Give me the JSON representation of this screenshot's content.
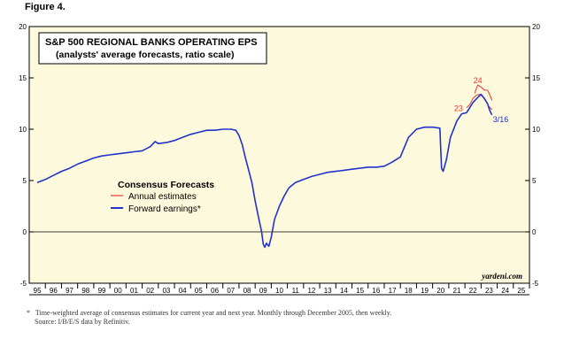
{
  "figure_label": "Figure 4.",
  "chart_data": {
    "type": "line",
    "title": "S&P 500 REGIONAL BANKS OPERATING EPS",
    "subtitle": "(analysts' average forecasts, ratio scale)",
    "xlabel": "",
    "ylabel": "",
    "ylim": [
      -5,
      20
    ],
    "yticks": [
      -5,
      0,
      5,
      10,
      15,
      20
    ],
    "xlim": [
      1994.5,
      2025.5
    ],
    "x_tick_labels": [
      "95",
      "96",
      "97",
      "98",
      "99",
      "00",
      "01",
      "02",
      "03",
      "04",
      "05",
      "06",
      "07",
      "08",
      "09",
      "10",
      "11",
      "12",
      "13",
      "14",
      "15",
      "16",
      "17",
      "18",
      "19",
      "20",
      "21",
      "22",
      "23",
      "24",
      "25"
    ],
    "grid": false,
    "legend_title": "Consensus Forecasts",
    "legend_position": "left",
    "colors": {
      "plot_background": "#fdf9dc",
      "annual": "#ee3333",
      "forward": "#2233cc"
    },
    "series": [
      {
        "name": "Forward earnings*",
        "color": "#2233cc",
        "x": [
          1995.0,
          1995.5,
          1996.0,
          1996.5,
          1997.0,
          1997.5,
          1998.0,
          1998.5,
          1999.0,
          1999.5,
          2000.0,
          2000.5,
          2001.0,
          2001.5,
          2002.0,
          2002.3,
          2002.5,
          2003.0,
          2003.5,
          2004.0,
          2004.5,
          2005.0,
          2005.5,
          2006.0,
          2006.5,
          2007.0,
          2007.3,
          2007.5,
          2007.7,
          2007.9,
          2008.1,
          2008.3,
          2008.5,
          2008.7,
          2008.9,
          2009.0,
          2009.1,
          2009.2,
          2009.35,
          2009.5,
          2009.7,
          2010.0,
          2010.3,
          2010.6,
          2011.0,
          2011.5,
          2012.0,
          2012.5,
          2013.0,
          2013.5,
          2014.0,
          2014.5,
          2015.0,
          2015.5,
          2016.0,
          2016.5,
          2017.0,
          2017.5,
          2018.0,
          2018.5,
          2019.0,
          2019.5,
          2019.95,
          2020.05,
          2020.15,
          2020.35,
          2020.6,
          2021.0,
          2021.3,
          2021.6,
          2022.0,
          2022.3,
          2022.5,
          2022.7,
          2022.9,
          2023.0,
          2023.1,
          2023.18
        ],
        "y": [
          4.8,
          5.1,
          5.5,
          5.9,
          6.2,
          6.6,
          6.9,
          7.2,
          7.4,
          7.5,
          7.6,
          7.7,
          7.8,
          7.9,
          8.3,
          8.8,
          8.6,
          8.7,
          8.9,
          9.2,
          9.5,
          9.7,
          9.9,
          9.9,
          10.0,
          10.0,
          9.9,
          9.4,
          8.5,
          7.2,
          6.0,
          4.8,
          3.0,
          1.5,
          0.0,
          -1.2,
          -1.5,
          -1.1,
          -1.4,
          -0.5,
          1.2,
          2.5,
          3.5,
          4.3,
          4.8,
          5.1,
          5.4,
          5.6,
          5.8,
          5.9,
          6.0,
          6.1,
          6.2,
          6.3,
          6.3,
          6.4,
          6.8,
          7.3,
          9.2,
          10.0,
          10.2,
          10.2,
          10.1,
          6.2,
          5.9,
          7.0,
          9.2,
          10.8,
          11.5,
          11.6,
          12.6,
          13.1,
          13.4,
          13.0,
          12.5,
          12.0,
          11.6,
          11.4
        ],
        "end_label": "3/16"
      },
      {
        "name": "Annual estimates",
        "color": "#ee3333",
        "segments": [
          {
            "label": "23",
            "x": [
              2021.6,
              2021.8,
              2022.0,
              2022.2,
              2022.4,
              2022.6,
              2022.8,
              2023.0,
              2023.18
            ],
            "y": [
              12.1,
              12.4,
              13.0,
              13.3,
              13.4,
              13.2,
              12.7,
              12.2,
              11.9
            ]
          },
          {
            "label": "24",
            "x": [
              2022.1,
              2022.3,
              2022.5,
              2022.7,
              2022.9,
              2023.0,
              2023.1,
              2023.18
            ],
            "y": [
              13.5,
              14.3,
              14.1,
              13.8,
              13.8,
              13.5,
              13.1,
              12.8
            ]
          }
        ]
      }
    ],
    "watermark": "yardeni.com"
  },
  "footnote": {
    "marker": "*",
    "line1": "Time-weighted average of consensus estimates for current year and next year. Monthly through December 2005, then weekly.",
    "line2": "Source: I/B/E/S data by Refinitiv."
  }
}
